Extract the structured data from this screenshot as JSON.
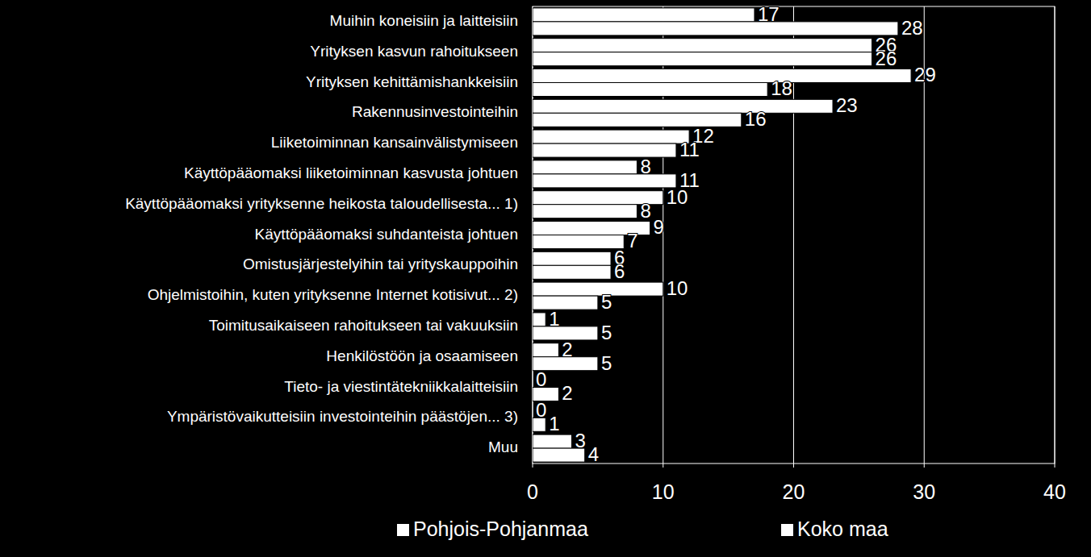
{
  "chart_data": {
    "type": "bar",
    "orientation": "horizontal",
    "categories": [
      "Muihin koneisiin ja laitteisiin",
      "Yrityksen kasvun rahoitukseen",
      "Yrityksen kehittämishankkeisiin",
      "Rakennusinvestointeihin",
      "Liiketoiminnan kansainvälistymiseen",
      "Käyttöpääomaksi liiketoiminnan kasvusta johtuen",
      "Käyttöpääomaksi yrityksenne heikosta taloudellisesta... 1)",
      "Käyttöpääomaksi suhdanteista johtuen",
      "Omistusjärjestelyihin tai yrityskauppoihin",
      "Ohjelmistoihin, kuten yrityksenne Internet kotisivut... 2)",
      "Toimitusaikaiseen rahoitukseen tai vakuuksiin",
      "Henkilöstöön ja osaamiseen",
      "Tieto- ja viestintätekniikkalaitteisiin",
      "Ympäristövaikutteisiin investointeihin päästöjen... 3)",
      "Muu"
    ],
    "series": [
      {
        "name": "Pohjois-Pohjanmaa",
        "color": "#ffffff",
        "values": [
          17,
          26,
          29,
          23,
          12,
          8,
          10,
          9,
          6,
          10,
          1,
          2,
          0,
          0,
          3
        ]
      },
      {
        "name": "Koko maa",
        "color": "#ffffff",
        "values": [
          28,
          26,
          18,
          16,
          11,
          11,
          8,
          7,
          6,
          5,
          5,
          5,
          2,
          1,
          4
        ]
      }
    ],
    "xlim": [
      0,
      40
    ],
    "xticks": [
      0,
      10,
      20,
      30,
      40
    ],
    "grid": true,
    "legend": "bottom",
    "data_labels": true
  }
}
